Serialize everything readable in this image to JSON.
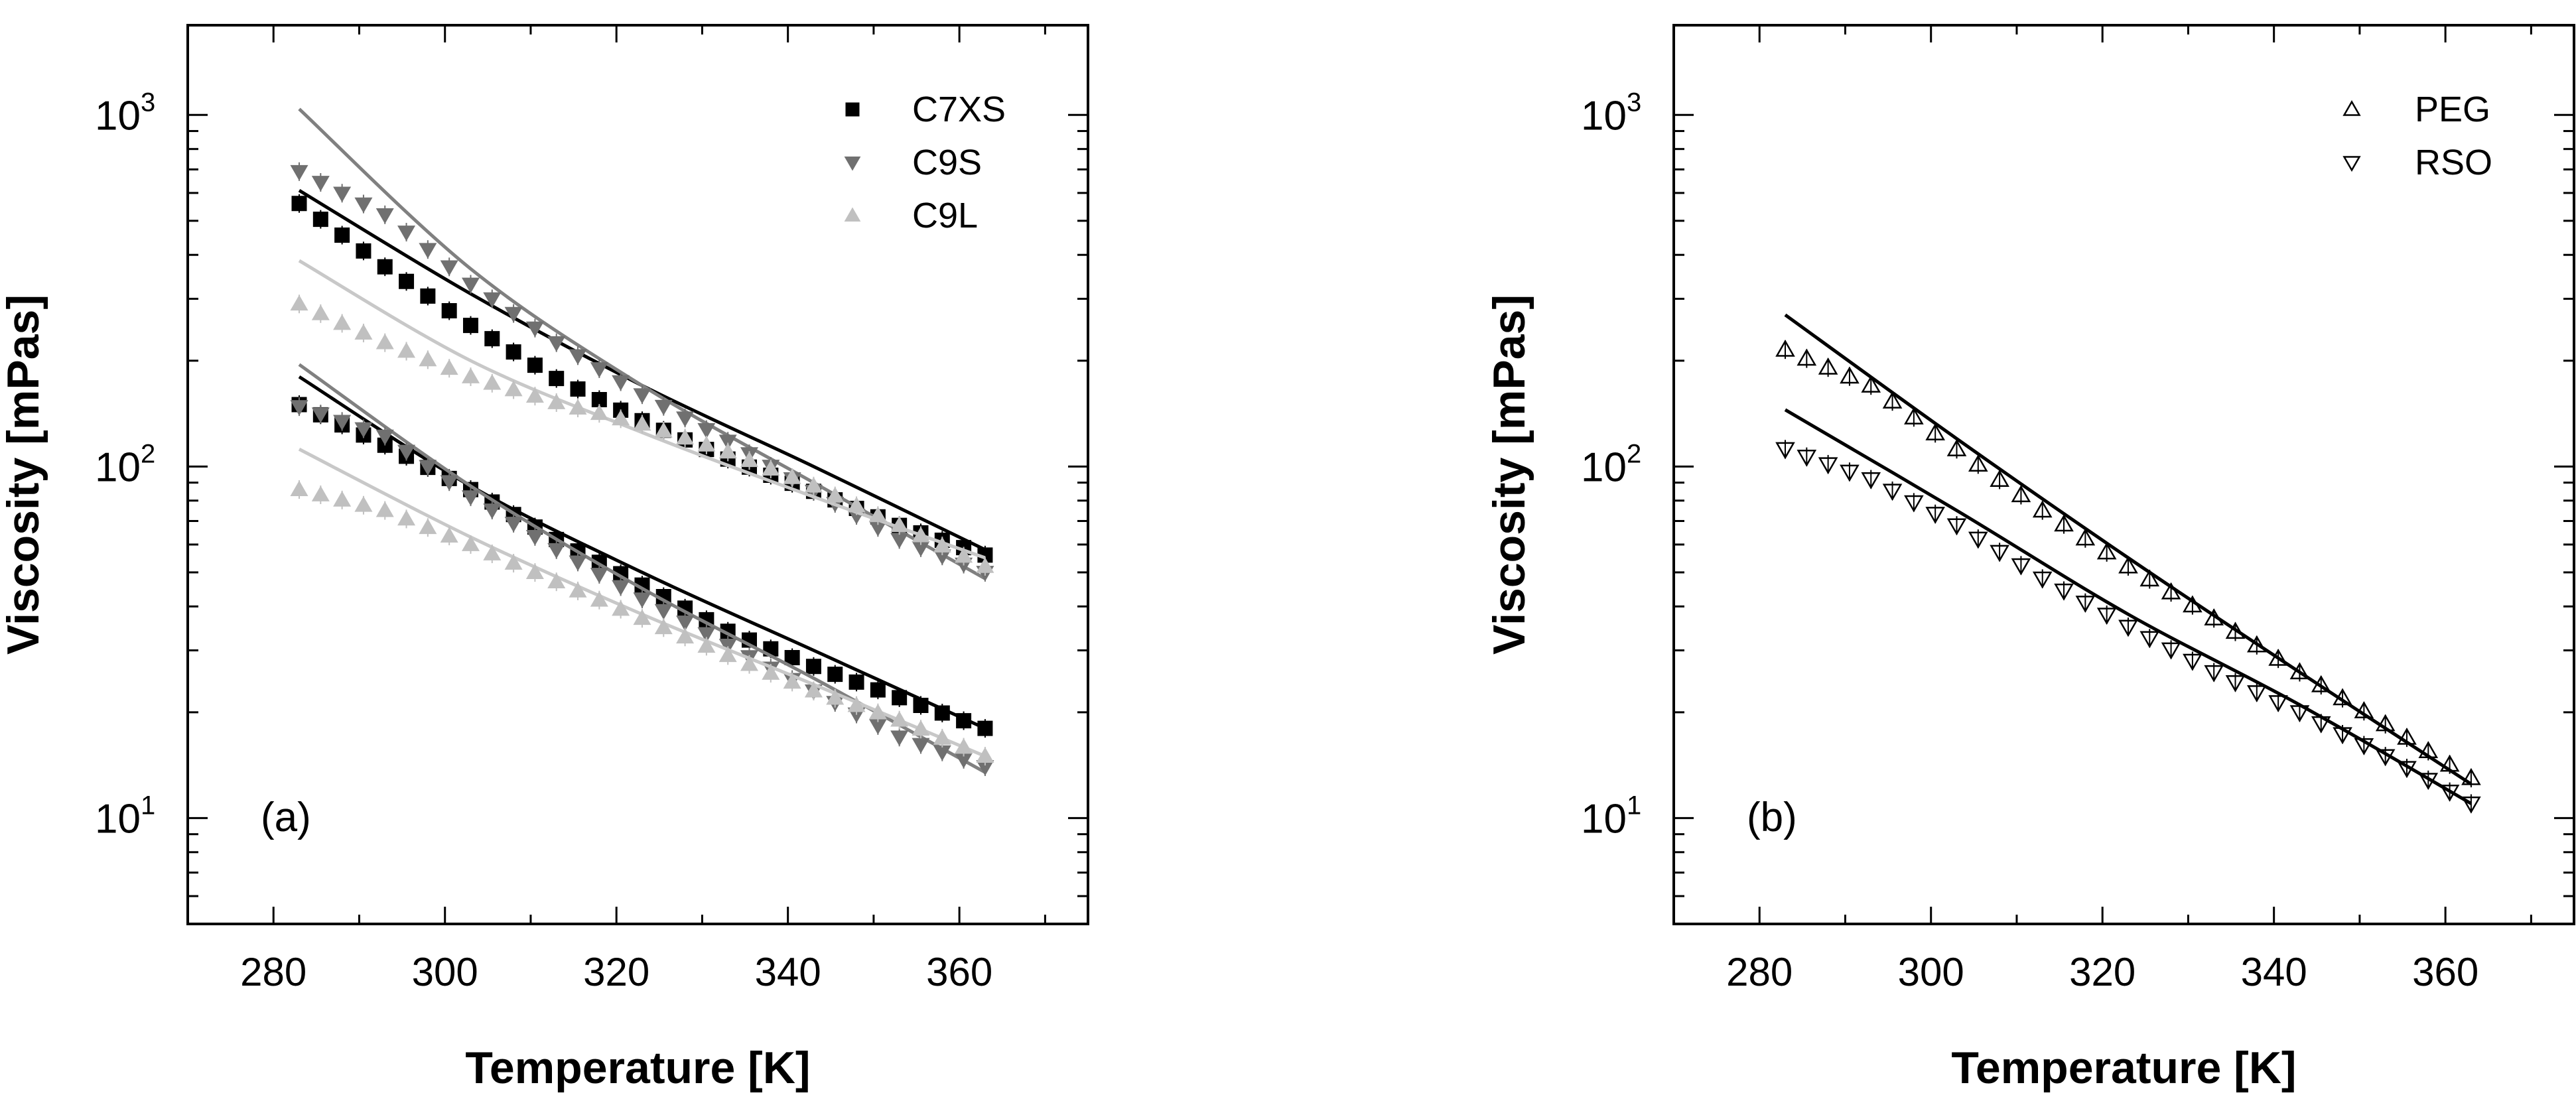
{
  "chart_data": [
    {
      "type": "scatter",
      "panel_label": "(a)",
      "xlabel": "Temperature [K]",
      "ylabel": "Viscosity [mPas]",
      "xlim": [
        270,
        375
      ],
      "ylim": [
        5,
        1800
      ],
      "yscale": "log",
      "x_ticks": [
        280,
        300,
        320,
        340,
        360
      ],
      "y_ticks": [
        {
          "value": 10,
          "base": "10",
          "exp": "1"
        },
        {
          "value": 100,
          "base": "10",
          "exp": "2"
        },
        {
          "value": 1000,
          "base": "10",
          "exp": "3"
        }
      ],
      "legend_position": "top-right",
      "series": [
        {
          "name": "C7XS",
          "marker": "square",
          "color": "#000000",
          "fill": true,
          "show_in_legend": true,
          "line_color": "#000000",
          "x": [
            283,
            293,
            303,
            313,
            323,
            333,
            343,
            353,
            363
          ],
          "values": [
            560,
            370,
            252,
            178,
            135,
            105,
            85,
            68,
            56
          ],
          "fit_x": [
            283,
            303,
            323,
            343,
            363
          ],
          "fit_values": [
            610,
            310,
            170,
            100,
            58
          ]
        },
        {
          "name": "C9S",
          "marker": "triangle-down",
          "color": "#707070",
          "fill": true,
          "show_in_legend": true,
          "line_color": "#808080",
          "x": [
            283,
            293,
            303,
            313,
            323,
            333,
            343,
            353,
            363
          ],
          "values": [
            690,
            520,
            330,
            225,
            160,
            118,
            85,
            62,
            50
          ],
          "fit_x": [
            283,
            303,
            323,
            343,
            363
          ],
          "fit_values": [
            1040,
            365,
            170,
            90,
            48
          ]
        },
        {
          "name": "C9L",
          "marker": "triangle-up",
          "color": "#c0c0c0",
          "fill": true,
          "show_in_legend": true,
          "line_color": "#c8c8c8",
          "x": [
            283,
            293,
            303,
            313,
            323,
            333,
            343,
            353,
            363
          ],
          "values": [
            290,
            225,
            180,
            152,
            132,
            110,
            88,
            68,
            52
          ],
          "fit_x": [
            283,
            303,
            323,
            343,
            363
          ],
          "fit_values": [
            385,
            200,
            125,
            82,
            55
          ]
        },
        {
          "name": "C7XS",
          "marker": "square",
          "color": "#000000",
          "fill": true,
          "show_in_legend": false,
          "line_color": "#000000",
          "x": [
            283,
            293,
            303,
            313,
            323,
            333,
            343,
            353,
            363
          ],
          "values": [
            150,
            115,
            86,
            62,
            46,
            34,
            27,
            22,
            18
          ],
          "fit_x": [
            283,
            303,
            323,
            343,
            363
          ],
          "fit_values": [
            180,
            88,
            50,
            30,
            18
          ]
        },
        {
          "name": "C9S",
          "marker": "triangle-down",
          "color": "#707070",
          "fill": true,
          "show_in_legend": false,
          "line_color": "#808080",
          "x": [
            283,
            293,
            303,
            313,
            323,
            333,
            343,
            353,
            363
          ],
          "values": [
            148,
            122,
            82,
            58,
            42,
            31,
            23,
            17,
            14
          ],
          "fit_x": [
            283,
            303,
            323,
            343,
            363
          ],
          "fit_values": [
            195,
            88,
            45,
            25,
            13.5
          ]
        },
        {
          "name": "C9L",
          "marker": "triangle-up",
          "color": "#c0c0c0",
          "fill": true,
          "show_in_legend": false,
          "line_color": "#c8c8c8",
          "x": [
            283,
            293,
            303,
            313,
            323,
            333,
            343,
            353,
            363
          ],
          "values": [
            86,
            75,
            60,
            47,
            37,
            29,
            23,
            19,
            15
          ],
          "fit_x": [
            283,
            303,
            323,
            343,
            363
          ],
          "fit_values": [
            112,
            63,
            38,
            24,
            15
          ]
        }
      ]
    },
    {
      "type": "scatter",
      "panel_label": "(b)",
      "xlabel": "Temperature [K]",
      "ylabel": "Viscosity [mPas]",
      "xlim": [
        270,
        375
      ],
      "ylim": [
        5,
        1800
      ],
      "yscale": "log",
      "x_ticks": [
        280,
        300,
        320,
        340,
        360
      ],
      "y_ticks": [
        {
          "value": 10,
          "base": "10",
          "exp": "1"
        },
        {
          "value": 100,
          "base": "10",
          "exp": "2"
        },
        {
          "value": 1000,
          "base": "10",
          "exp": "3"
        }
      ],
      "legend_position": "top-right",
      "series": [
        {
          "name": "PEG",
          "marker": "triangle-up",
          "color": "#000000",
          "fill": false,
          "show_in_legend": true,
          "line_color": "#000000",
          "x": [
            283,
            293,
            303,
            313,
            323,
            333,
            343,
            353,
            363
          ],
          "values": [
            215,
            170,
            112,
            75,
            52,
            37,
            26,
            18.5,
            13
          ],
          "fit_x": [
            283,
            303,
            323,
            343,
            363
          ],
          "fit_values": [
            270,
            120,
            55,
            26,
            12.5
          ]
        },
        {
          "name": "RSO",
          "marker": "triangle-down",
          "color": "#000000",
          "fill": false,
          "show_in_legend": true,
          "line_color": "#000000",
          "x": [
            283,
            293,
            303,
            313,
            323,
            333,
            343,
            353,
            363
          ],
          "values": [
            112,
            92,
            68,
            48,
            35,
            26,
            20,
            15,
            11
          ],
          "fit_x": [
            283,
            303,
            323,
            343,
            363
          ],
          "fit_values": [
            145,
            75,
            38,
            21,
            11
          ]
        }
      ]
    }
  ]
}
